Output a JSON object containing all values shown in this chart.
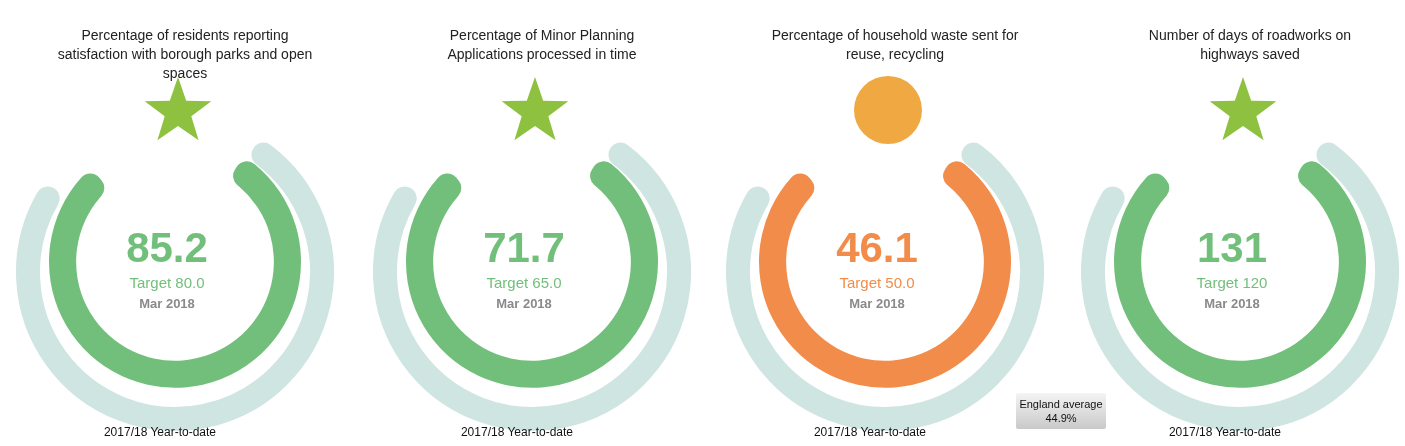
{
  "chart_data": [
    {
      "type": "other",
      "title": "Percentage of residents reporting satisfaction with borough parks and open spaces",
      "values": [
        85.2
      ],
      "color": "#72bf7b",
      "data_labels": true,
      "annotations": [
        "Target 80.0",
        "Mar 2018",
        "2017/18 Year-to-date"
      ]
    },
    {
      "type": "other",
      "title": "Percentage of Minor Planning Applications processed in time",
      "values": [
        71.7
      ],
      "color": "#72bf7b",
      "data_labels": true,
      "annotations": [
        "Target 65.0",
        "Mar 2018",
        "2017/18 Year-to-date"
      ]
    },
    {
      "type": "other",
      "title": "Percentage of household waste sent for reuse, recycling",
      "values": [
        46.1
      ],
      "color": "#f28c4a",
      "data_labels": true,
      "annotations": [
        "Target 50.0",
        "Mar 2018",
        "2017/18 Year-to-date",
        "England average 44.9%"
      ]
    },
    {
      "type": "other",
      "title": "Number of days of roadworks on highways saved",
      "values": [
        131
      ],
      "color": "#72bf7b",
      "data_labels": true,
      "annotations": [
        "Target 120",
        "Mar 2018",
        "2017/18 Year-to-date"
      ]
    }
  ]
}
